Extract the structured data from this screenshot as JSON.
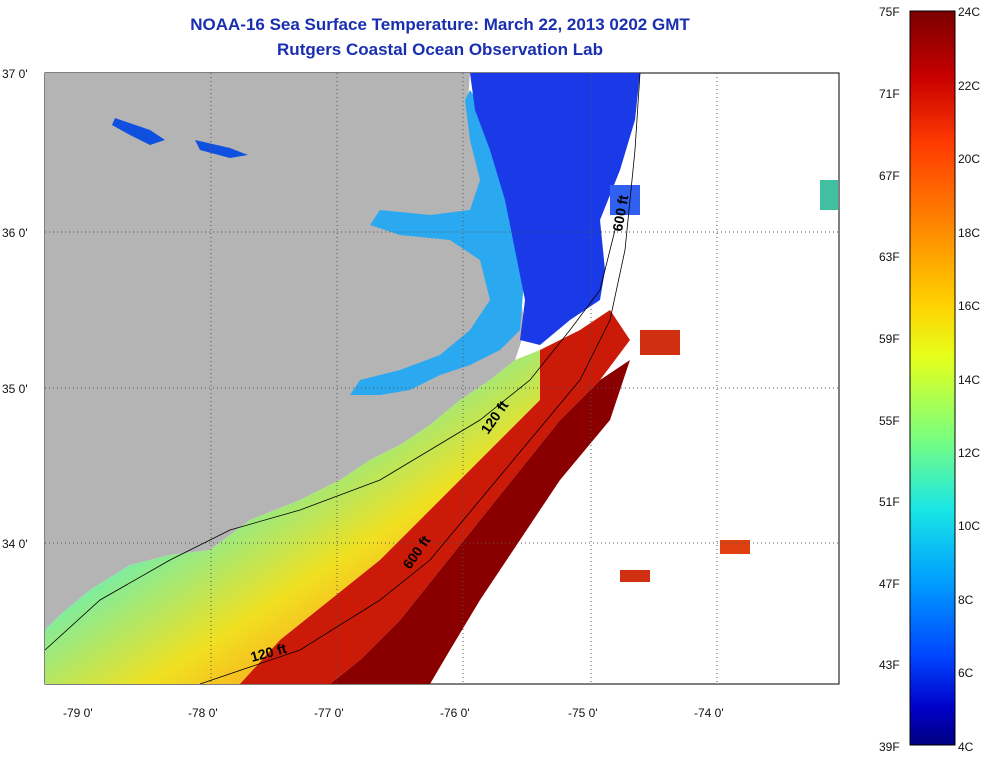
{
  "title": {
    "line1": "NOAA-16 Sea Surface Temperature:  March 22, 2013 0202 GMT",
    "line2": "Rutgers Coastal Ocean Observation Lab"
  },
  "axes": {
    "latitude_labels": [
      "37 0'",
      "36 0'",
      "35 0'",
      "34 0'"
    ],
    "longitude_labels": [
      "-79 0'",
      "-78 0'",
      "-77 0'",
      "-76 0'",
      "-75 0'",
      "-74 0'"
    ]
  },
  "contours": [
    {
      "label": "120 ft"
    },
    {
      "label": "600 ft"
    },
    {
      "label": "120 ft"
    },
    {
      "label": "600 ft"
    }
  ],
  "colorbar": {
    "fahrenheit_labels": [
      "75F",
      "71F",
      "67F",
      "63F",
      "59F",
      "55F",
      "51F",
      "47F",
      "43F",
      "39F"
    ],
    "celsius_labels": [
      "24C",
      "22C",
      "20C",
      "18C",
      "16C",
      "14C",
      "12C",
      "10C",
      "8C",
      "6C",
      "4C"
    ],
    "colors": [
      "#7a0000",
      "#c80000",
      "#ff3a00",
      "#ff8c00",
      "#ffd200",
      "#e6ff1a",
      "#7cff7c",
      "#18e6e6",
      "#009cff",
      "#0044ff",
      "#0000c8",
      "#000080"
    ]
  },
  "colors": {
    "land": "#b4b4b4",
    "title": "#1a2fb0"
  }
}
